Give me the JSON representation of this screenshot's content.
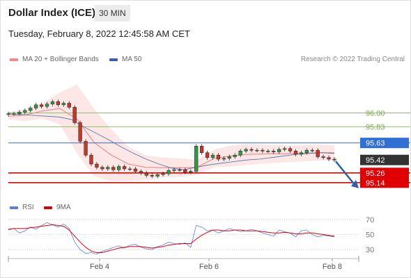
{
  "header": {
    "title": "Dollar Index (ICE)",
    "timeframe": "30 MIN"
  },
  "datetime": "Tuesday, February 8, 2022 12:45:58 AM CET",
  "credit": "Research © 2022 Trading Central",
  "colors": {
    "bollinger": "#f0a0a0",
    "bollinger_fill": "#fde6e6",
    "ma20": "#e88080",
    "ma50": "#4a6fa5",
    "rsi": "#5b7fd6",
    "rsi_ma": "#e00000",
    "support": "#e00000",
    "resistance": "#2f6fd6",
    "target": "#8cc06a",
    "pivot": "#333333"
  },
  "chart_data": [
    {
      "type": "candlestick",
      "title": "",
      "legend": [
        {
          "name": "MA 20 + Bollinger Bands",
          "color": "#f0a0a0"
        },
        {
          "name": "MA 50",
          "color": "#3a5fa0"
        }
      ],
      "x_ticks": [
        "Feb 4",
        "Feb 6",
        "Feb 8"
      ],
      "ylim": [
        94.95,
        96.45
      ],
      "levels": [
        {
          "label": "96.00",
          "value": 96.0,
          "kind": "target"
        },
        {
          "label": "95.83",
          "value": 95.83,
          "kind": "target"
        },
        {
          "label": "95.63",
          "value": 95.63,
          "kind": "resistance"
        },
        {
          "label": "95.42",
          "value": 95.42,
          "kind": "pivot"
        },
        {
          "label": "95.26",
          "value": 95.26,
          "kind": "support"
        },
        {
          "label": "95.14",
          "value": 95.14,
          "kind": "support"
        }
      ],
      "close_path": [
        95.99,
        95.99,
        96.01,
        96.03,
        96.06,
        96.1,
        96.08,
        96.11,
        96.14,
        96.1,
        96.12,
        96.07,
        95.88,
        95.65,
        95.48,
        95.37,
        95.33,
        95.31,
        95.33,
        95.3,
        95.34,
        95.31,
        95.31,
        95.28,
        95.26,
        95.23,
        95.22,
        95.24,
        95.25,
        95.29,
        95.3,
        95.3,
        95.27,
        95.28,
        95.59,
        95.51,
        95.45,
        95.48,
        95.43,
        95.44,
        95.46,
        95.48,
        95.53,
        95.55,
        95.54,
        95.54,
        95.53,
        95.53,
        95.52,
        95.55,
        95.56,
        95.53,
        95.49,
        95.51,
        95.54,
        95.54,
        95.46,
        95.45,
        95.43,
        95.42
      ],
      "ma50_path": [
        95.99,
        95.98,
        95.97,
        95.96,
        95.95,
        95.92,
        95.83,
        95.75,
        95.67,
        95.58,
        95.5,
        95.43,
        95.37,
        95.32,
        95.3,
        95.33,
        95.36,
        95.38,
        95.4,
        95.42,
        95.43,
        95.45,
        95.47,
        95.49,
        95.5,
        95.51,
        95.5
      ],
      "bollinger": {
        "upper": [
          96.0,
          96.05,
          96.12,
          96.25,
          96.35,
          96.05,
          95.8,
          95.58,
          95.48,
          95.45,
          95.44,
          95.42,
          95.55,
          95.6,
          95.62,
          95.61,
          95.6,
          95.6,
          95.61,
          95.6
        ],
        "lower": [
          95.92,
          95.9,
          95.93,
          95.86,
          95.5,
          95.22,
          95.16,
          95.16,
          95.18,
          95.2,
          95.21,
          95.24,
          95.33,
          95.34,
          95.36,
          95.38,
          95.39,
          95.4,
          95.41,
          95.42
        ]
      }
    },
    {
      "type": "line",
      "title": "",
      "legend": [
        {
          "name": "RSI",
          "color": "#5b7fd6"
        },
        {
          "name": "9MA",
          "color": "#e00000"
        }
      ],
      "ylim": [
        20,
        80
      ],
      "ticks": [
        70,
        50,
        30
      ],
      "series": [
        {
          "name": "RSI",
          "values": [
            56,
            58,
            52,
            55,
            60,
            57,
            62,
            66,
            63,
            60,
            64,
            58,
            40,
            30,
            25,
            26,
            24,
            28,
            30,
            33,
            35,
            32,
            36,
            37,
            33,
            31,
            30,
            34,
            36,
            40,
            38,
            37,
            39,
            33,
            62,
            60,
            55,
            56,
            52,
            55,
            58,
            56,
            54,
            55,
            57,
            55,
            52,
            50,
            48,
            56,
            54,
            52,
            47,
            55,
            56,
            50,
            47,
            49,
            48,
            47
          ]
        },
        {
          "name": "9MA",
          "values": [
            57,
            58,
            58,
            58,
            59,
            60,
            61,
            62,
            63,
            62,
            61,
            56,
            48,
            40,
            33,
            28,
            26,
            26,
            28,
            30,
            32,
            33,
            34,
            34,
            34,
            33,
            32,
            33,
            34,
            36,
            37,
            38,
            38,
            38,
            44,
            49,
            53,
            56,
            56,
            55,
            55,
            56,
            56,
            55,
            55,
            55,
            54,
            53,
            52,
            52,
            53,
            52,
            51,
            51,
            52,
            52,
            51,
            50,
            49,
            48
          ]
        }
      ]
    }
  ]
}
